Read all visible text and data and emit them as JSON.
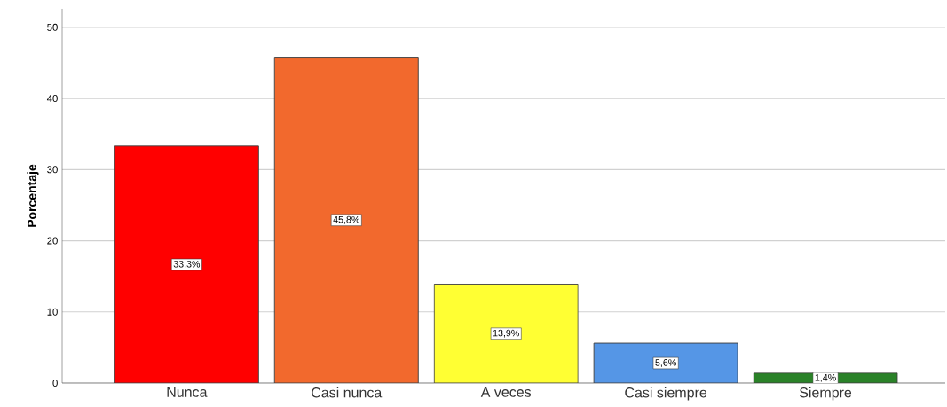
{
  "chart_data": {
    "type": "bar",
    "ylabel": "Porcentaje",
    "categories": [
      "Nunca",
      "Casi nunca",
      "A veces",
      "Casi siempre",
      "Siempre"
    ],
    "values": [
      33.3,
      45.8,
      13.9,
      5.6,
      1.4
    ],
    "colors": [
      "#ff0000",
      "#f2692d",
      "#ffff33",
      "#5596e6",
      "#2a8228"
    ],
    "value_labels": [
      "33,3%",
      "45,8%",
      "13,9%",
      "5,6%",
      "1,4%"
    ],
    "ylim": [
      0,
      52.6
    ],
    "yticks": [
      0,
      10,
      20,
      30,
      40,
      50
    ],
    "grid": "y"
  }
}
